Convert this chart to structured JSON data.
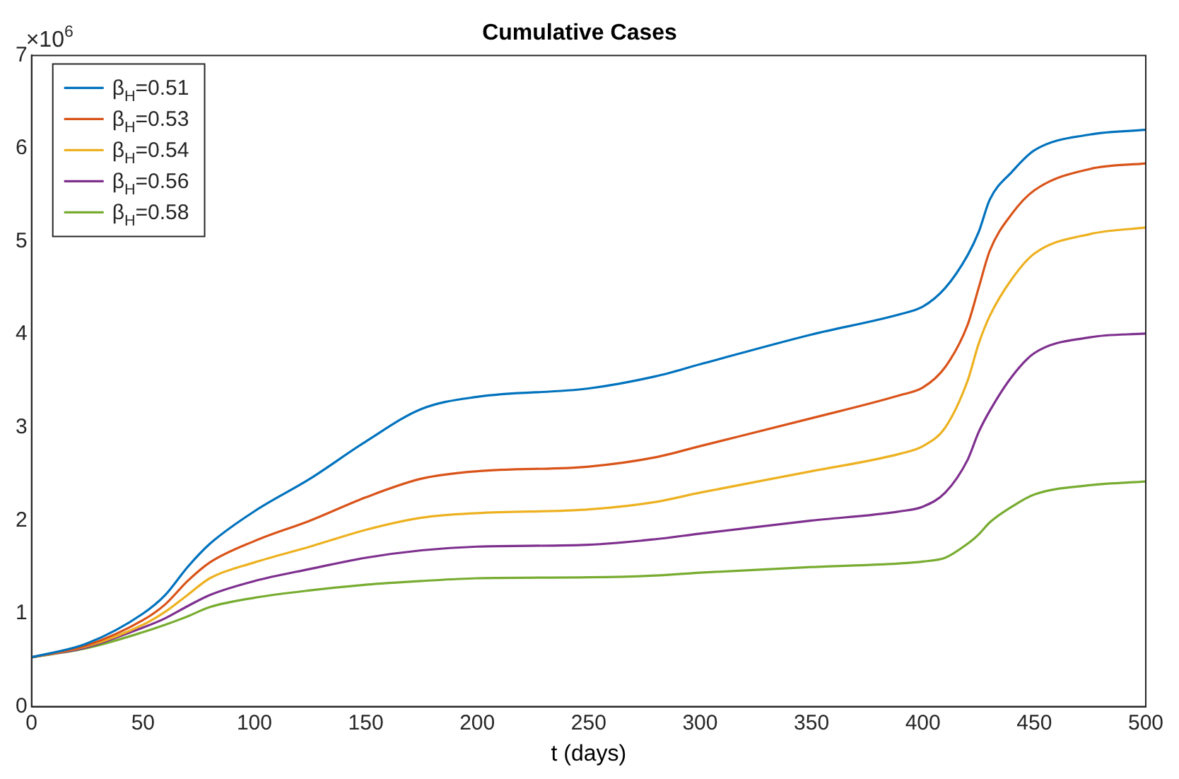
{
  "chart_data": {
    "type": "line",
    "title": "Cumulative Cases",
    "xlabel": "t (days)",
    "annotations": [
      "×10$^{6}$"
    ],
    "x": [
      0,
      25,
      50,
      60,
      70,
      80,
      100,
      125,
      150,
      175,
      200,
      250,
      280,
      300,
      350,
      390,
      400,
      410,
      420,
      425,
      430,
      440,
      450,
      475,
      500
    ],
    "xlim": [
      0,
      500
    ],
    "xticks": [
      0,
      50,
      100,
      150,
      200,
      250,
      300,
      350,
      400,
      450,
      500
    ],
    "ylim": [
      0,
      7
    ],
    "yticks": [
      0,
      1,
      2,
      3,
      4,
      5,
      6,
      7
    ],
    "grid": false,
    "legend": "top left",
    "marker": "none",
    "line_style": "solid",
    "series": [
      {
        "name": "β$_{H}$=0.51",
        "color": "#0072bd",
        "values": [
          0.53,
          0.68,
          1.0,
          1.2,
          1.5,
          1.75,
          2.1,
          2.45,
          2.85,
          3.2,
          3.33,
          3.42,
          3.55,
          3.68,
          4.0,
          4.22,
          4.3,
          4.5,
          4.85,
          5.1,
          5.45,
          5.75,
          5.98,
          6.15,
          6.2
        ]
      },
      {
        "name": "β$_{H}$=0.53",
        "color": "#d95319",
        "values": [
          0.53,
          0.66,
          0.93,
          1.1,
          1.35,
          1.55,
          1.78,
          2.0,
          2.25,
          2.45,
          2.53,
          2.58,
          2.68,
          2.8,
          3.1,
          3.35,
          3.43,
          3.65,
          4.1,
          4.5,
          4.9,
          5.3,
          5.55,
          5.78,
          5.84
        ]
      },
      {
        "name": "β$_{H}$=0.54",
        "color": "#edb120",
        "values": [
          0.53,
          0.65,
          0.88,
          1.02,
          1.2,
          1.38,
          1.55,
          1.72,
          1.9,
          2.03,
          2.08,
          2.12,
          2.2,
          2.3,
          2.53,
          2.72,
          2.8,
          3.0,
          3.5,
          3.9,
          4.2,
          4.6,
          4.87,
          5.08,
          5.15
        ]
      },
      {
        "name": "β$_{H}$=0.56",
        "color": "#7e2f8e",
        "values": [
          0.53,
          0.64,
          0.85,
          0.95,
          1.08,
          1.2,
          1.35,
          1.48,
          1.6,
          1.68,
          1.72,
          1.74,
          1.8,
          1.86,
          2.0,
          2.1,
          2.15,
          2.3,
          2.65,
          2.95,
          3.18,
          3.55,
          3.8,
          3.97,
          4.01
        ]
      },
      {
        "name": "β$_{H}$=0.58",
        "color": "#77ac30",
        "values": [
          0.53,
          0.63,
          0.8,
          0.88,
          0.97,
          1.07,
          1.17,
          1.25,
          1.31,
          1.35,
          1.38,
          1.39,
          1.41,
          1.44,
          1.5,
          1.54,
          1.56,
          1.6,
          1.75,
          1.85,
          1.98,
          2.15,
          2.28,
          2.38,
          2.42
        ]
      }
    ]
  }
}
